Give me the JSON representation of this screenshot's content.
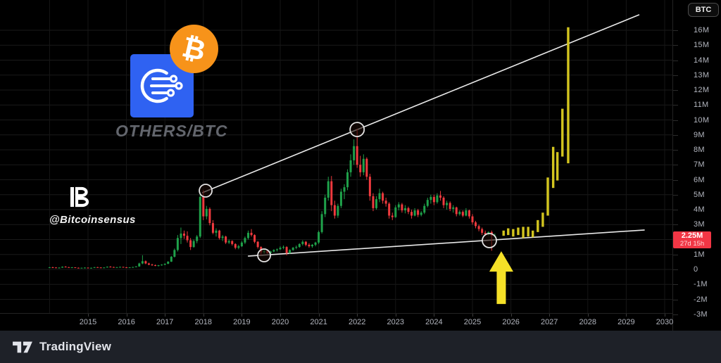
{
  "symbol_button_label": "BTC",
  "logos": {
    "pair_label": "OTHERS/BTC",
    "bitcoin_symbol": "₿"
  },
  "watermark": {
    "handle": "@Bitcoinsensus"
  },
  "price_label": {
    "value": "2.25M",
    "countdown": "27d 15h"
  },
  "footer": {
    "brand": "TradingView"
  },
  "colors": {
    "up": "#1fa14a",
    "down": "#ef3a3e",
    "projection": "#d3c51f",
    "arrow": "#f5e027",
    "trendline": "#e8e8e8",
    "circle": "#e3e3e3",
    "badge": "#f23645",
    "grid": "#1a1a1a",
    "accent_blue": "#2f62f2",
    "bitcoin_orange": "#f7931a"
  },
  "chart_data": {
    "type": "candlestick",
    "symbol": "OTHERS/BTC",
    "interval": "monthly",
    "y_axis": {
      "unit": "M",
      "tick_labels": [
        [
          16,
          "16M"
        ],
        [
          15,
          "15M"
        ],
        [
          14,
          "14M"
        ],
        [
          13,
          "13M"
        ],
        [
          12,
          "12M"
        ],
        [
          11,
          "11M"
        ],
        [
          10,
          "10M"
        ],
        [
          9,
          "9M"
        ],
        [
          8,
          "8M"
        ],
        [
          7,
          "7M"
        ],
        [
          6,
          "6M"
        ],
        [
          5,
          "5M"
        ],
        [
          4,
          "4M"
        ],
        [
          3,
          "3M"
        ],
        [
          1,
          "1M"
        ],
        [
          0,
          "0"
        ],
        [
          -1,
          "-1M"
        ],
        [
          -2,
          "-2M"
        ],
        [
          -3,
          "-3M"
        ]
      ],
      "grid_values": [
        16,
        15,
        14,
        13,
        12,
        11,
        10,
        9,
        8,
        7,
        6,
        5,
        4,
        3,
        2,
        1,
        0,
        -1,
        -2
      ]
    },
    "x_axis": {
      "tick_years": [
        2015,
        2016,
        2017,
        2018,
        2019,
        2020,
        2021,
        2022,
        2023,
        2024,
        2025,
        2026,
        2027,
        2028,
        2029,
        2030
      ],
      "grid_years": [
        2014,
        2015,
        2016,
        2017,
        2018,
        2019,
        2020,
        2021,
        2022,
        2023,
        2024,
        2025,
        2026,
        2027,
        2028,
        2029,
        2030
      ]
    },
    "current_price": 2.25,
    "candles": [
      [
        2014.0,
        0.12,
        0.16,
        0.1,
        0.14
      ],
      [
        2014.083,
        0.14,
        0.18,
        0.12,
        0.13
      ],
      [
        2014.167,
        0.13,
        0.15,
        0.09,
        0.1
      ],
      [
        2014.25,
        0.1,
        0.14,
        0.08,
        0.12
      ],
      [
        2014.333,
        0.12,
        0.2,
        0.11,
        0.18
      ],
      [
        2014.417,
        0.18,
        0.22,
        0.14,
        0.15
      ],
      [
        2014.5,
        0.15,
        0.17,
        0.12,
        0.13
      ],
      [
        2014.583,
        0.13,
        0.16,
        0.11,
        0.14
      ],
      [
        2014.667,
        0.14,
        0.15,
        0.1,
        0.11
      ],
      [
        2014.75,
        0.11,
        0.13,
        0.08,
        0.09
      ],
      [
        2014.833,
        0.09,
        0.12,
        0.07,
        0.11
      ],
      [
        2014.917,
        0.11,
        0.14,
        0.09,
        0.12
      ],
      [
        2015.0,
        0.12,
        0.13,
        0.07,
        0.08
      ],
      [
        2015.083,
        0.08,
        0.12,
        0.06,
        0.11
      ],
      [
        2015.167,
        0.11,
        0.16,
        0.1,
        0.15
      ],
      [
        2015.25,
        0.15,
        0.17,
        0.12,
        0.13
      ],
      [
        2015.333,
        0.13,
        0.15,
        0.11,
        0.12
      ],
      [
        2015.417,
        0.12,
        0.14,
        0.1,
        0.13
      ],
      [
        2015.5,
        0.13,
        0.2,
        0.12,
        0.18
      ],
      [
        2015.583,
        0.18,
        0.22,
        0.15,
        0.16
      ],
      [
        2015.667,
        0.16,
        0.18,
        0.13,
        0.14
      ],
      [
        2015.75,
        0.14,
        0.16,
        0.12,
        0.15
      ],
      [
        2015.833,
        0.15,
        0.19,
        0.14,
        0.17
      ],
      [
        2015.917,
        0.17,
        0.18,
        0.13,
        0.14
      ],
      [
        2016.0,
        0.14,
        0.16,
        0.11,
        0.12
      ],
      [
        2016.083,
        0.12,
        0.15,
        0.1,
        0.14
      ],
      [
        2016.167,
        0.14,
        0.18,
        0.13,
        0.16
      ],
      [
        2016.25,
        0.16,
        0.22,
        0.15,
        0.2
      ],
      [
        2016.333,
        0.2,
        0.45,
        0.18,
        0.4
      ],
      [
        2016.417,
        0.4,
        0.95,
        0.35,
        0.55
      ],
      [
        2016.5,
        0.55,
        0.6,
        0.35,
        0.4
      ],
      [
        2016.583,
        0.4,
        0.45,
        0.28,
        0.32
      ],
      [
        2016.667,
        0.32,
        0.38,
        0.25,
        0.28
      ],
      [
        2016.75,
        0.28,
        0.33,
        0.22,
        0.25
      ],
      [
        2016.833,
        0.25,
        0.3,
        0.2,
        0.28
      ],
      [
        2016.917,
        0.28,
        0.35,
        0.25,
        0.32
      ],
      [
        2017.0,
        0.32,
        0.4,
        0.28,
        0.38
      ],
      [
        2017.083,
        0.38,
        0.55,
        0.35,
        0.52
      ],
      [
        2017.167,
        0.52,
        0.9,
        0.5,
        0.85
      ],
      [
        2017.25,
        0.85,
        1.4,
        0.8,
        1.3
      ],
      [
        2017.333,
        1.3,
        2.3,
        1.2,
        2.1
      ],
      [
        2017.417,
        2.1,
        2.8,
        1.7,
        2.4
      ],
      [
        2017.5,
        2.4,
        2.6,
        2.05,
        2.25
      ],
      [
        2017.583,
        2.25,
        2.55,
        1.8,
        1.95
      ],
      [
        2017.667,
        1.95,
        2.1,
        1.3,
        1.5
      ],
      [
        2017.75,
        1.5,
        2.0,
        1.45,
        1.9
      ],
      [
        2017.833,
        1.9,
        2.3,
        1.75,
        2.2
      ],
      [
        2017.917,
        2.2,
        5.2,
        2.1,
        4.85
      ],
      [
        2018.0,
        4.85,
        5.3,
        3.3,
        3.55
      ],
      [
        2018.083,
        3.55,
        4.25,
        3.35,
        4.05
      ],
      [
        2018.167,
        4.05,
        4.15,
        2.95,
        3.1
      ],
      [
        2018.25,
        3.1,
        3.3,
        2.35,
        2.45
      ],
      [
        2018.333,
        2.45,
        2.75,
        2.2,
        2.6
      ],
      [
        2018.417,
        2.6,
        2.65,
        2.0,
        2.1
      ],
      [
        2018.5,
        2.1,
        2.3,
        1.9,
        2.2
      ],
      [
        2018.583,
        2.2,
        2.25,
        1.7,
        1.8
      ],
      [
        2018.667,
        1.8,
        2.0,
        1.7,
        1.9
      ],
      [
        2018.75,
        1.9,
        1.95,
        1.6,
        1.7
      ],
      [
        2018.833,
        1.7,
        1.75,
        1.35,
        1.45
      ],
      [
        2018.917,
        1.45,
        1.65,
        1.35,
        1.55
      ],
      [
        2019.0,
        1.55,
        1.9,
        1.5,
        1.8
      ],
      [
        2019.083,
        1.8,
        2.2,
        1.7,
        2.1
      ],
      [
        2019.167,
        2.1,
        2.6,
        2.0,
        2.45
      ],
      [
        2019.25,
        2.45,
        2.7,
        2.2,
        2.3
      ],
      [
        2019.333,
        2.3,
        2.35,
        1.75,
        1.85
      ],
      [
        2019.417,
        1.85,
        1.9,
        1.4,
        1.5
      ],
      [
        2019.5,
        1.5,
        1.55,
        0.95,
        1.15
      ],
      [
        2019.583,
        1.15,
        1.35,
        1.05,
        1.25
      ],
      [
        2019.667,
        1.25,
        1.3,
        1.05,
        1.1
      ],
      [
        2019.75,
        1.1,
        1.25,
        1.0,
        1.2
      ],
      [
        2019.833,
        1.2,
        1.35,
        1.15,
        1.3
      ],
      [
        2019.917,
        1.3,
        1.4,
        1.2,
        1.35
      ],
      [
        2020.0,
        1.35,
        1.55,
        1.3,
        1.45
      ],
      [
        2020.083,
        1.45,
        1.6,
        1.35,
        1.5
      ],
      [
        2020.167,
        1.5,
        1.55,
        0.95,
        1.1
      ],
      [
        2020.25,
        1.1,
        1.35,
        1.05,
        1.3
      ],
      [
        2020.333,
        1.3,
        1.5,
        1.25,
        1.45
      ],
      [
        2020.417,
        1.45,
        1.6,
        1.35,
        1.5
      ],
      [
        2020.5,
        1.5,
        1.75,
        1.45,
        1.7
      ],
      [
        2020.583,
        1.7,
        1.95,
        1.6,
        1.85
      ],
      [
        2020.667,
        1.85,
        1.9,
        1.55,
        1.65
      ],
      [
        2020.75,
        1.65,
        1.75,
        1.45,
        1.55
      ],
      [
        2020.833,
        1.55,
        1.7,
        1.45,
        1.65
      ],
      [
        2020.917,
        1.65,
        1.85,
        1.55,
        1.8
      ],
      [
        2021.0,
        1.8,
        2.6,
        1.7,
        2.5
      ],
      [
        2021.083,
        2.5,
        3.9,
        2.4,
        3.7
      ],
      [
        2021.167,
        3.7,
        5.0,
        3.5,
        4.8
      ],
      [
        2021.25,
        4.8,
        6.2,
        4.6,
        5.9
      ],
      [
        2021.333,
        5.9,
        6.25,
        3.9,
        4.3
      ],
      [
        2021.417,
        4.3,
        4.6,
        3.4,
        3.6
      ],
      [
        2021.5,
        3.6,
        4.4,
        3.45,
        4.25
      ],
      [
        2021.583,
        4.25,
        5.4,
        4.1,
        5.2
      ],
      [
        2021.667,
        5.2,
        5.7,
        4.7,
        5.5
      ],
      [
        2021.75,
        5.5,
        6.7,
        5.3,
        6.5
      ],
      [
        2021.833,
        6.5,
        7.7,
        6.2,
        7.3
      ],
      [
        2021.917,
        7.3,
        8.7,
        7.0,
        8.25
      ],
      [
        2022.0,
        8.25,
        9.4,
        6.8,
        7.0
      ],
      [
        2022.083,
        7.0,
        7.6,
        6.2,
        6.5
      ],
      [
        2022.167,
        6.5,
        7.7,
        6.3,
        7.4
      ],
      [
        2022.25,
        7.4,
        7.5,
        6.0,
        6.2
      ],
      [
        2022.333,
        6.2,
        6.4,
        4.6,
        4.9
      ],
      [
        2022.417,
        4.9,
        5.1,
        3.9,
        4.1
      ],
      [
        2022.5,
        4.1,
        4.9,
        4.0,
        4.7
      ],
      [
        2022.583,
        4.7,
        5.4,
        4.5,
        5.1
      ],
      [
        2022.667,
        5.1,
        5.2,
        4.4,
        4.6
      ],
      [
        2022.75,
        4.6,
        4.8,
        4.2,
        4.4
      ],
      [
        2022.833,
        4.4,
        4.5,
        3.4,
        3.6
      ],
      [
        2022.917,
        3.6,
        3.8,
        3.3,
        3.5
      ],
      [
        2023.0,
        3.5,
        4.3,
        3.45,
        4.15
      ],
      [
        2023.083,
        4.15,
        4.5,
        3.95,
        4.35
      ],
      [
        2023.167,
        4.35,
        4.45,
        3.8,
        3.95
      ],
      [
        2023.25,
        3.95,
        4.3,
        3.75,
        4.1
      ],
      [
        2023.333,
        4.1,
        4.2,
        3.7,
        3.85
      ],
      [
        2023.417,
        3.85,
        4.0,
        3.4,
        3.6
      ],
      [
        2023.5,
        3.6,
        4.1,
        3.55,
        3.95
      ],
      [
        2023.583,
        3.95,
        4.05,
        3.5,
        3.65
      ],
      [
        2023.667,
        3.65,
        3.9,
        3.55,
        3.8
      ],
      [
        2023.75,
        3.8,
        4.4,
        3.7,
        4.25
      ],
      [
        2023.833,
        4.25,
        4.8,
        4.15,
        4.65
      ],
      [
        2023.917,
        4.65,
        5.0,
        4.4,
        4.85
      ],
      [
        2024.0,
        4.85,
        5.0,
        4.3,
        4.5
      ],
      [
        2024.083,
        4.5,
        5.1,
        4.4,
        4.95
      ],
      [
        2024.167,
        4.95,
        5.25,
        4.6,
        4.8
      ],
      [
        2024.25,
        4.8,
        4.9,
        4.1,
        4.3
      ],
      [
        2024.333,
        4.3,
        4.6,
        4.0,
        4.45
      ],
      [
        2024.417,
        4.45,
        4.55,
        3.9,
        4.05
      ],
      [
        2024.5,
        4.05,
        4.3,
        3.8,
        4.15
      ],
      [
        2024.583,
        4.15,
        4.2,
        3.55,
        3.7
      ],
      [
        2024.667,
        3.7,
        3.95,
        3.6,
        3.85
      ],
      [
        2024.75,
        3.85,
        3.95,
        3.5,
        3.6
      ],
      [
        2024.833,
        3.6,
        4.1,
        3.55,
        3.95
      ],
      [
        2024.917,
        3.95,
        4.0,
        3.4,
        3.55
      ],
      [
        2025.0,
        3.55,
        3.7,
        3.0,
        3.15
      ],
      [
        2025.083,
        3.15,
        3.25,
        2.75,
        2.9
      ],
      [
        2025.167,
        2.9,
        3.0,
        2.55,
        2.7
      ],
      [
        2025.25,
        2.7,
        2.8,
        2.3,
        2.45
      ],
      [
        2025.333,
        2.45,
        2.6,
        2.25,
        2.35
      ],
      [
        2025.417,
        2.35,
        2.55,
        2.25,
        2.5
      ],
      [
        2025.5,
        2.5,
        2.6,
        1.25,
        2.25
      ],
      [
        2025.583,
        2.25,
        2.4,
        2.15,
        2.25
      ]
    ],
    "projection_bars": [
      [
        2025.81,
        2.25,
        2.6
      ],
      [
        2025.93,
        2.3,
        2.75
      ],
      [
        2026.06,
        2.2,
        2.7
      ],
      [
        2026.19,
        2.3,
        2.8
      ],
      [
        2026.32,
        2.1,
        2.85
      ],
      [
        2026.45,
        2.2,
        2.85
      ],
      [
        2026.57,
        2.15,
        2.6
      ],
      [
        2026.7,
        2.5,
        3.3
      ],
      [
        2026.83,
        2.85,
        3.8
      ],
      [
        2026.96,
        3.6,
        6.15
      ],
      [
        2027.1,
        5.45,
        8.2
      ],
      [
        2027.21,
        5.95,
        7.85
      ],
      [
        2027.34,
        7.55,
        10.75
      ],
      [
        2027.49,
        7.1,
        16.2
      ]
    ],
    "trendlines": [
      {
        "name": "upper-resistance",
        "x1_year": 2017.97,
        "y1": 5.13,
        "x2_year": 2029.34,
        "y2": 17.04
      },
      {
        "name": "lower-support",
        "x1_year": 2019.16,
        "y1": 0.89,
        "x2_year": 2029.48,
        "y2": 2.64
      }
    ],
    "touch_circles": [
      {
        "x_year": 2018.06,
        "value": 5.27,
        "r": 9
      },
      {
        "x_year": 2019.58,
        "value": 0.94,
        "r": 9
      },
      {
        "x_year": 2022.0,
        "value": 9.36,
        "r": 10
      },
      {
        "x_year": 2025.44,
        "value": 1.93,
        "r": 10
      }
    ],
    "arrow": {
      "x_year": 2025.75,
      "tip_value": 1.22,
      "base_value": -2.31
    }
  }
}
